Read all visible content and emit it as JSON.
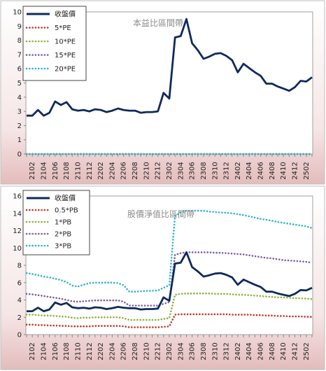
{
  "chart_data": [
    {
      "type": "line",
      "title": "本益比區間帶",
      "xlabel": "",
      "ylabel": "",
      "ylim": [
        0,
        10
      ],
      "y_ticks": [
        0,
        1,
        2,
        3,
        4,
        5,
        6,
        7,
        8,
        9,
        10
      ],
      "grid": false,
      "legend_position": "top-left",
      "categories": [
        "2101",
        "2102",
        "2103",
        "2104",
        "2105",
        "2106",
        "2107",
        "2108",
        "2109",
        "2110",
        "2111",
        "2112",
        "2201",
        "2202",
        "2203",
        "2204",
        "2205",
        "2206",
        "2207",
        "2208",
        "2209",
        "2210",
        "2211",
        "2212",
        "2301",
        "2302",
        "2303",
        "2304",
        "2305",
        "2306",
        "2307",
        "2308",
        "2309",
        "2310",
        "2311",
        "2312",
        "2401",
        "2402",
        "2403",
        "2404",
        "2405",
        "2406",
        "2407",
        "2408",
        "2409",
        "2410",
        "2411",
        "2412",
        "2501",
        "2502",
        "2503"
      ],
      "tick_labels": [
        "2102",
        "2104",
        "2106",
        "2108",
        "2110",
        "2112",
        "2202",
        "2204",
        "2206",
        "2208",
        "2210",
        "2212",
        "2302",
        "2304",
        "2306",
        "2308",
        "2310",
        "2312",
        "2402",
        "2404",
        "2406",
        "2408",
        "2410",
        "2412",
        "2502"
      ],
      "series": [
        {
          "name": "收盤價",
          "style": "solid",
          "color": "#0f2a5c",
          "values": [
            2.7,
            2.7,
            3.1,
            2.7,
            2.9,
            3.7,
            3.45,
            3.65,
            3.15,
            3.05,
            3.1,
            3.0,
            3.15,
            3.1,
            2.95,
            3.05,
            3.2,
            3.1,
            3.05,
            3.05,
            2.9,
            2.95,
            2.95,
            3.0,
            4.3,
            3.9,
            8.2,
            8.3,
            9.5,
            7.8,
            7.3,
            6.7,
            6.85,
            7.05,
            7.1,
            6.9,
            6.6,
            5.75,
            6.35,
            6.05,
            5.75,
            5.5,
            4.95,
            4.95,
            4.75,
            4.6,
            4.45,
            4.7,
            5.15,
            5.1,
            5.4
          ]
        },
        {
          "name": "5*PE",
          "style": "dotted",
          "color": "#c0392b",
          "values": [
            0,
            0,
            0,
            0,
            0,
            0,
            0,
            0,
            0,
            0,
            0,
            0,
            0,
            0,
            0,
            0,
            0,
            0,
            0,
            0,
            0,
            0,
            0,
            0,
            0,
            0,
            0,
            0,
            0,
            0,
            0,
            0,
            0,
            0,
            0,
            0,
            0,
            0,
            0,
            0,
            0,
            0,
            0,
            0,
            0,
            0,
            0,
            0,
            0,
            0,
            0
          ]
        },
        {
          "name": "10*PE",
          "style": "dotted",
          "color": "#8db33a",
          "values": [
            0,
            0,
            0,
            0,
            0,
            0,
            0,
            0,
            0,
            0,
            0,
            0,
            0,
            0,
            0,
            0,
            0,
            0,
            0,
            0,
            0,
            0,
            0,
            0,
            0,
            0,
            0,
            0,
            0,
            0,
            0,
            0,
            0,
            0,
            0,
            0,
            0,
            0,
            0,
            0,
            0,
            0,
            0,
            0,
            0,
            0,
            0,
            0,
            0,
            0,
            0
          ]
        },
        {
          "name": "15*PE",
          "style": "dotted",
          "color": "#7b5ea7",
          "values": [
            0,
            0,
            0,
            0,
            0,
            0,
            0,
            0,
            0,
            0,
            0,
            0,
            0,
            0,
            0,
            0,
            0,
            0,
            0,
            0,
            0,
            0,
            0,
            0,
            0,
            0,
            0,
            0,
            0,
            0,
            0,
            0,
            0,
            0,
            0,
            0,
            0,
            0,
            0,
            0,
            0,
            0,
            0,
            0,
            0,
            0,
            0,
            0,
            0,
            0,
            0
          ]
        },
        {
          "name": "20*PE",
          "style": "dotted",
          "color": "#2fb5c8",
          "values": [
            0,
            0,
            0,
            0,
            0,
            0,
            0,
            0,
            0,
            0,
            0,
            0,
            0,
            0,
            0,
            0,
            0,
            0,
            0,
            0,
            0,
            0,
            0,
            0,
            0,
            0,
            0,
            0,
            0,
            0,
            0,
            0,
            0,
            0,
            0,
            0,
            0,
            0,
            0,
            0,
            0,
            0,
            0,
            0,
            0,
            0,
            0,
            0,
            0,
            0,
            0
          ]
        }
      ]
    },
    {
      "type": "line",
      "title": "股價淨值比區間帶",
      "xlabel": "",
      "ylabel": "",
      "ylim": [
        0,
        16
      ],
      "y_ticks": [
        0,
        2,
        4,
        6,
        8,
        10,
        12,
        14,
        16
      ],
      "grid": false,
      "legend_position": "top-left",
      "categories": [
        "2101",
        "2102",
        "2103",
        "2104",
        "2105",
        "2106",
        "2107",
        "2108",
        "2109",
        "2110",
        "2111",
        "2112",
        "2201",
        "2202",
        "2203",
        "2204",
        "2205",
        "2206",
        "2207",
        "2208",
        "2209",
        "2210",
        "2211",
        "2212",
        "2301",
        "2302",
        "2303",
        "2304",
        "2305",
        "2306",
        "2307",
        "2308",
        "2309",
        "2310",
        "2311",
        "2312",
        "2401",
        "2402",
        "2403",
        "2404",
        "2405",
        "2406",
        "2407",
        "2408",
        "2409",
        "2410",
        "2411",
        "2412",
        "2501",
        "2502",
        "2503"
      ],
      "tick_labels": [
        "2102",
        "2104",
        "2106",
        "2108",
        "2110",
        "2112",
        "2202",
        "2204",
        "2206",
        "2208",
        "2210",
        "2212",
        "2302",
        "2304",
        "2306",
        "2308",
        "2310",
        "2312",
        "2402",
        "2404",
        "2406",
        "2408",
        "2410",
        "2412",
        "2502"
      ],
      "series": [
        {
          "name": "收盤價",
          "style": "solid",
          "color": "#0f2a5c",
          "values": [
            2.7,
            2.7,
            3.1,
            2.7,
            2.9,
            3.7,
            3.45,
            3.65,
            3.15,
            3.05,
            3.1,
            3.0,
            3.15,
            3.1,
            2.95,
            3.05,
            3.2,
            3.1,
            3.05,
            3.05,
            2.9,
            2.95,
            2.95,
            3.0,
            4.3,
            3.9,
            8.2,
            8.3,
            9.5,
            7.8,
            7.3,
            6.7,
            6.85,
            7.05,
            7.1,
            6.9,
            6.6,
            5.75,
            6.35,
            6.05,
            5.75,
            5.5,
            4.95,
            4.95,
            4.75,
            4.6,
            4.45,
            4.7,
            5.15,
            5.1,
            5.4
          ]
        },
        {
          "name": "0.5*PB",
          "style": "dotted",
          "color": "#c0392b",
          "values": [
            1.15,
            1.15,
            1.1,
            1.1,
            1.05,
            1.05,
            1.0,
            1.0,
            0.95,
            0.95,
            0.95,
            0.95,
            1.0,
            1.0,
            1.0,
            1.0,
            1.0,
            0.95,
            0.85,
            0.85,
            0.85,
            0.85,
            0.85,
            0.85,
            0.9,
            0.95,
            2.3,
            2.35,
            2.35,
            2.35,
            2.35,
            2.35,
            2.35,
            2.35,
            2.35,
            2.35,
            2.3,
            2.3,
            2.3,
            2.3,
            2.25,
            2.25,
            2.2,
            2.2,
            2.15,
            2.15,
            2.1,
            2.1,
            2.1,
            2.05,
            2.05
          ]
        },
        {
          "name": "1*PB",
          "style": "dotted",
          "color": "#8db33a",
          "values": [
            2.3,
            2.3,
            2.25,
            2.2,
            2.2,
            2.15,
            2.1,
            2.05,
            1.95,
            1.9,
            1.95,
            1.95,
            2.0,
            2.0,
            2.0,
            2.0,
            2.0,
            1.9,
            1.7,
            1.7,
            1.7,
            1.7,
            1.7,
            1.7,
            1.8,
            1.9,
            4.6,
            4.7,
            4.75,
            4.75,
            4.75,
            4.75,
            4.75,
            4.7,
            4.7,
            4.7,
            4.65,
            4.6,
            4.6,
            4.55,
            4.5,
            4.45,
            4.4,
            4.35,
            4.3,
            4.3,
            4.25,
            4.2,
            4.2,
            4.15,
            4.1
          ]
        },
        {
          "name": "2*PB",
          "style": "dotted",
          "color": "#7b5ea7",
          "values": [
            4.7,
            4.65,
            4.55,
            4.45,
            4.35,
            4.25,
            4.15,
            4.0,
            3.85,
            3.8,
            3.85,
            3.9,
            3.95,
            3.95,
            3.95,
            3.95,
            3.95,
            3.8,
            3.35,
            3.35,
            3.35,
            3.35,
            3.35,
            3.35,
            3.55,
            3.75,
            9.2,
            9.4,
            9.5,
            9.5,
            9.5,
            9.5,
            9.5,
            9.45,
            9.45,
            9.4,
            9.35,
            9.3,
            9.25,
            9.15,
            9.05,
            8.95,
            8.85,
            8.8,
            8.7,
            8.6,
            8.55,
            8.5,
            8.45,
            8.4,
            8.3
          ]
        },
        {
          "name": "3*PB",
          "style": "dotted",
          "color": "#2fb5c8",
          "values": [
            7.1,
            7.0,
            6.85,
            6.7,
            6.6,
            6.45,
            6.3,
            6.05,
            5.65,
            5.55,
            5.75,
            5.95,
            6.0,
            6.0,
            6.0,
            6.0,
            5.95,
            5.7,
            4.95,
            4.95,
            5.0,
            5.05,
            5.05,
            5.1,
            5.4,
            5.7,
            13.7,
            14.1,
            14.3,
            14.3,
            14.3,
            14.3,
            14.2,
            14.15,
            14.1,
            14.05,
            14.0,
            13.9,
            13.8,
            13.65,
            13.5,
            13.35,
            13.25,
            13.15,
            13.0,
            12.9,
            12.8,
            12.7,
            12.6,
            12.5,
            12.3
          ]
        }
      ]
    }
  ]
}
